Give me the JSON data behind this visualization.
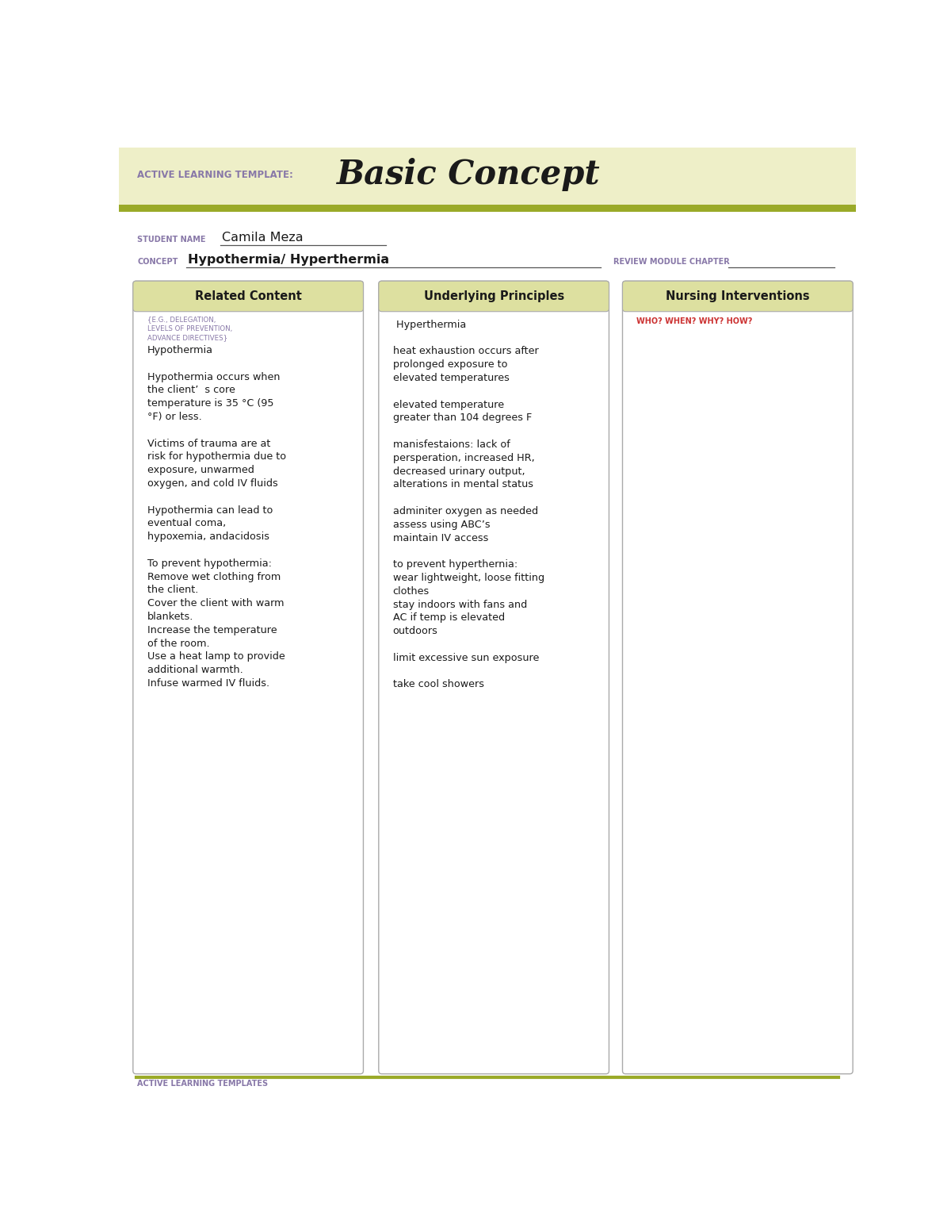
{
  "bg_color": "#eeefc8",
  "white": "#ffffff",
  "olive_green": "#9aaa28",
  "light_olive": "#dde0a0",
  "purple_label": "#8878a8",
  "red_label": "#cc3333",
  "dark_text": "#1a1a1a",
  "header_title_label": "ACTIVE LEARNING TEMPLATE:",
  "header_title_main": "Basic Concept",
  "student_label": "STUDENT NAME",
  "student_name": "Camila Meza",
  "concept_label": "CONCEPT",
  "concept_name": "Hypothermia/ Hyperthermia",
  "review_label": "REVIEW MODULE CHAPTER",
  "col1_header": "Related Content",
  "col1_sublabel": "{E.G., DELEGATION,\nLEVELS OF PREVENTION,\nADVANCE DIRECTIVES}",
  "col1_content": "Hypothermia\n\nHypothermia occurs when\nthe client’  s core\ntemperature is 35 °C (95\n°F) or less.\n\nVictims of trauma are at\nrisk for hypothermia due to\nexposure, unwarmed\noxygen, and cold IV fluids\n\nHypothermia can lead to\neventual coma,\nhypoxemia, andacidosis\n\nTo prevent hypothermia:\nRemove wet clothing from\nthe client.\nCover the client with warm\nblankets.\nIncrease the temperature\nof the room.\nUse a heat lamp to provide\nadditional warmth.\nInfuse warmed IV fluids.",
  "col2_header": "Underlying Principles",
  "col2_content": " Hyperthermia\n\nheat exhaustion occurs after\nprolonged exposure to\nelevated temperatures\n\nelevated temperature\ngreater than 104 degrees F\n\nmanisfestaions: lack of\npersperation, increased HR,\ndecreased urinary output,\nalterations in mental status\n\nadminiter oxygen as needed\nassess using ABC’s\nmaintain IV access\n\nto prevent hyperthernia:\nwear lightweight, loose fitting\nclothes\nstay indoors with fans and\nAC if temp is elevated\noutdoors\n\nlimit excessive sun exposure\n\ntake cool showers",
  "col3_header": "Nursing Interventions",
  "col3_sublabel": "WHO? WHEN? WHY? HOW?",
  "footer_text": "ACTIVE LEARNING TEMPLATES",
  "fig_width": 12.0,
  "fig_height": 15.53
}
